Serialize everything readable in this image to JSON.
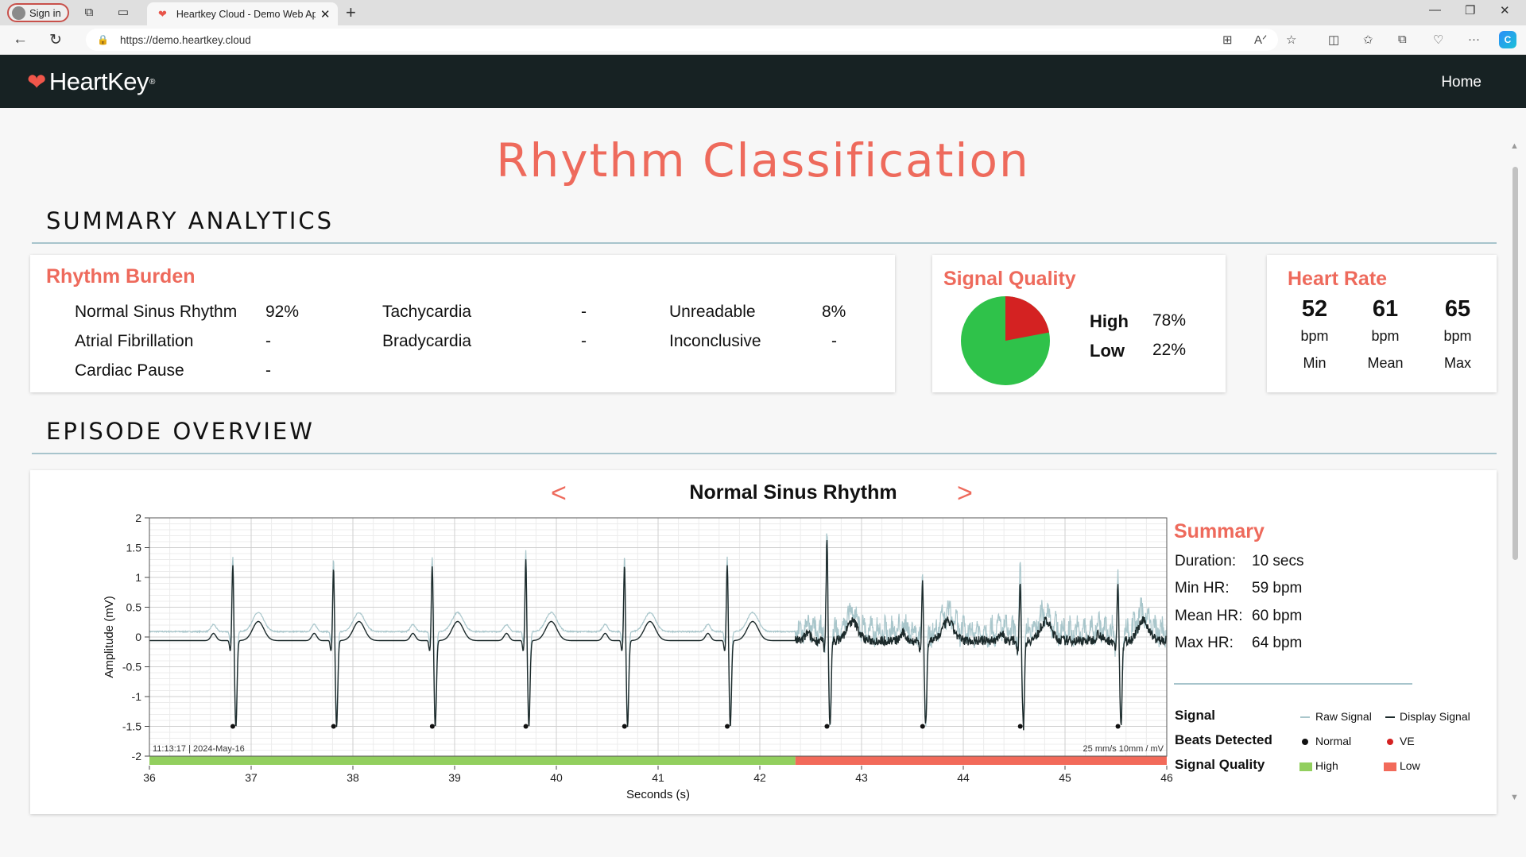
{
  "browser": {
    "signin_label": "Sign in",
    "tab_title": "Heartkey Cloud - Demo Web Ap",
    "url": "https://demo.heartkey.cloud"
  },
  "app": {
    "logo_text": "HeartKey",
    "logo_mark": "®",
    "nav_home": "Home",
    "page_title": "Rhythm Classification"
  },
  "summary_analytics": {
    "heading": "SUMMARY ANALYTICS",
    "rhythm_burden": {
      "title": "Rhythm Burden",
      "items": [
        {
          "label": "Normal Sinus Rhythm",
          "value": "92%"
        },
        {
          "label": "Atrial Fibrillation",
          "value": "-"
        },
        {
          "label": "Cardiac Pause",
          "value": "-"
        },
        {
          "label": "Tachycardia",
          "value": "-"
        },
        {
          "label": "Bradycardia",
          "value": "-"
        },
        {
          "label": "Unreadable",
          "value": "8%"
        },
        {
          "label": "Inconclusive",
          "value": "-"
        }
      ]
    },
    "signal_quality": {
      "title": "Signal Quality",
      "high_label": "High",
      "high_value": "78%",
      "low_label": "Low",
      "low_value": "22%",
      "high_fraction": 0.78,
      "high_color": "#2fc24a",
      "low_color": "#d42222"
    },
    "heart_rate": {
      "title": "Heart Rate",
      "stats": [
        {
          "value": "52",
          "unit": "bpm",
          "label": "Min"
        },
        {
          "value": "61",
          "unit": "bpm",
          "label": "Mean"
        },
        {
          "value": "65",
          "unit": "bpm",
          "label": "Max"
        }
      ]
    }
  },
  "episode_overview": {
    "heading": "EPISODE OVERVIEW",
    "episode_title": "Normal Sinus Rhythm",
    "prev_glyph": "<",
    "next_glyph": ">",
    "summary": {
      "title": "Summary",
      "rows": [
        {
          "label": "Duration:",
          "value": "10 secs"
        },
        {
          "label": "Min HR:",
          "value": "59 bpm"
        },
        {
          "label": "Mean HR:",
          "value": "60 bpm"
        },
        {
          "label": "Max HR:",
          "value": "64 bpm"
        }
      ]
    },
    "legend": {
      "signal_label": "Signal",
      "raw_signal": "Raw Signal",
      "display_signal": "Display Signal",
      "beats_label": "Beats Detected",
      "normal": "Normal",
      "ve": "VE",
      "quality_label": "Signal Quality",
      "high": "High",
      "low": "Low"
    },
    "colors": {
      "accent": "#ee6a5c",
      "raw_signal": "#a9c6cb",
      "display_signal": "#1c2a2b",
      "high_quality": "#92cf5e",
      "low_quality": "#f26a5a",
      "ve_beat": "#d42222"
    }
  },
  "chart_data": {
    "type": "line",
    "xlabel": "Seconds (s)",
    "ylabel": "Amplitude (mV)",
    "xlim": [
      36,
      46
    ],
    "ylim": [
      -2,
      2
    ],
    "x_ticks": [
      36,
      37,
      38,
      39,
      40,
      41,
      42,
      43,
      44,
      45,
      46
    ],
    "y_ticks": [
      2,
      1.5,
      1,
      0.5,
      0,
      -0.5,
      -1,
      -1.5,
      -2
    ],
    "y_tick_labels": [
      "2",
      "1.5",
      "1",
      "0.5",
      "0",
      "-0.5",
      "-1",
      "-1.5",
      "-2"
    ],
    "grid": true,
    "timestamp_label": "11:13:17 | 2024-May-16",
    "scale_label": "25 mm/s 10mm / mV",
    "series": [
      {
        "name": "Raw Signal"
      },
      {
        "name": "Display Signal"
      }
    ],
    "r_peaks": [
      {
        "t": 36.82,
        "amp": 1.3
      },
      {
        "t": 37.81,
        "amp": 1.25
      },
      {
        "t": 38.78,
        "amp": 1.28
      },
      {
        "t": 39.7,
        "amp": 1.4
      },
      {
        "t": 40.67,
        "amp": 1.3
      },
      {
        "t": 41.68,
        "amp": 1.3
      },
      {
        "t": 42.66,
        "amp": 1.75
      },
      {
        "t": 43.6,
        "amp": 1.0
      },
      {
        "t": 44.56,
        "amp": 1.05
      },
      {
        "t": 45.52,
        "amp": 0.95
      }
    ],
    "beats_detected": [
      {
        "t": 36.82,
        "type": "Normal"
      },
      {
        "t": 37.81,
        "type": "Normal"
      },
      {
        "t": 38.78,
        "type": "Normal"
      },
      {
        "t": 39.7,
        "type": "Normal"
      },
      {
        "t": 40.67,
        "type": "Normal"
      },
      {
        "t": 41.68,
        "type": "Normal"
      },
      {
        "t": 42.66,
        "type": "Normal"
      },
      {
        "t": 43.6,
        "type": "Normal"
      },
      {
        "t": 44.56,
        "type": "Normal"
      },
      {
        "t": 45.52,
        "type": "Normal"
      }
    ],
    "noise_start": 42.35,
    "signal_quality_segments": [
      {
        "start": 36,
        "end": 42.35,
        "quality": "High"
      },
      {
        "start": 42.35,
        "end": 46,
        "quality": "Low"
      }
    ]
  }
}
